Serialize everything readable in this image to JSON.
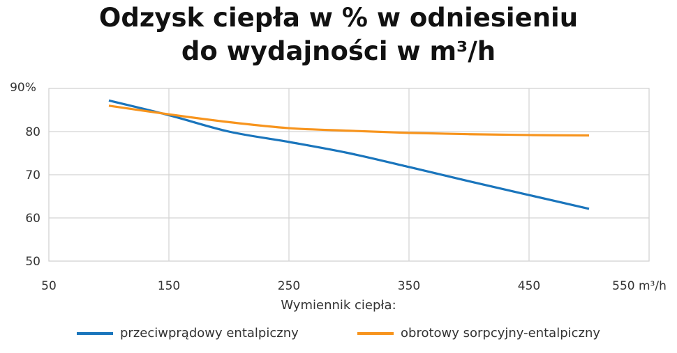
{
  "chart_data": {
    "type": "line",
    "title_line1": "Odzysk ciepła w % w odniesieniu",
    "title_line2": "do wydajności w m³/h",
    "x_ticks": [
      50,
      150,
      250,
      350,
      450,
      550
    ],
    "x_tick_labels": [
      "50",
      "150",
      "250",
      "350",
      "450",
      "550 m³/h"
    ],
    "y_ticks": [
      50,
      60,
      70,
      80,
      90
    ],
    "y_tick_labels": [
      "50",
      "60",
      "70",
      "80",
      "90%"
    ],
    "xlim": [
      50,
      550
    ],
    "ylim": [
      50,
      90
    ],
    "grid": true,
    "legend_title": "Wymiennik ciepła:",
    "legend_placement": "bottom",
    "x": [
      100,
      150,
      200,
      250,
      300,
      350,
      400,
      450,
      500
    ],
    "series": [
      {
        "name": "przeciwprądowy entalpiczny",
        "color": "#1a75bc",
        "values": [
          87.2,
          83.8,
          80.0,
          77.6,
          75.0,
          71.8,
          68.5,
          65.3,
          62.1
        ]
      },
      {
        "name": "obrotowy sorpcyjny-entalpiczny",
        "color": "#f7941d",
        "values": [
          86.0,
          84.0,
          82.2,
          80.8,
          80.2,
          79.7,
          79.4,
          79.2,
          79.1
        ]
      }
    ]
  }
}
